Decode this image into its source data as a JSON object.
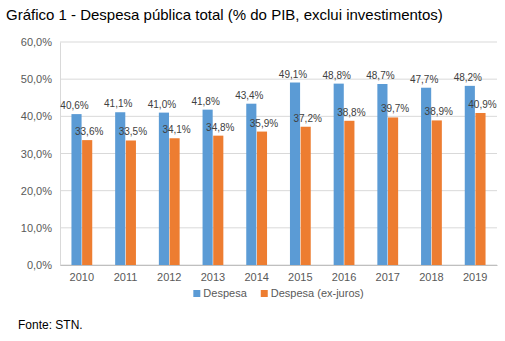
{
  "chart_data": {
    "type": "bar",
    "title": "Gráfico 1 - Despesa pública total (% do PIB, exclui investimentos)",
    "source": "Fonte: STN.",
    "categories": [
      "2010",
      "2011",
      "2012",
      "2013",
      "2014",
      "2015",
      "2016",
      "2017",
      "2018",
      "2019"
    ],
    "series": [
      {
        "name": "Despesa",
        "color": "#5b9bd5",
        "values": [
          40.6,
          41.1,
          41.0,
          41.8,
          43.4,
          49.1,
          48.8,
          48.7,
          47.7,
          48.2
        ],
        "value_labels": [
          "40,6%",
          "41,1%",
          "41,0%",
          "41,8%",
          "43,4%",
          "49,1%",
          "48,8%",
          "48,7%",
          "47,7%",
          "48,2%"
        ]
      },
      {
        "name": "Despesa (ex-juros)",
        "color": "#ed7d31",
        "values": [
          33.6,
          33.5,
          34.1,
          34.8,
          35.9,
          37.2,
          38.8,
          39.7,
          38.9,
          40.9
        ],
        "value_labels": [
          "33,6%",
          "33,5%",
          "34,1%",
          "34,8%",
          "35,9%",
          "37,2%",
          "38,8%",
          "39,7%",
          "38,9%",
          "40,9%"
        ]
      }
    ],
    "ylim": [
      0,
      60
    ],
    "yticks": [
      {
        "value": 0,
        "label": "0,0%"
      },
      {
        "value": 10,
        "label": "10,0%"
      },
      {
        "value": 20,
        "label": "20,0%"
      },
      {
        "value": 30,
        "label": "30,0%"
      },
      {
        "value": 40,
        "label": "40,0%"
      },
      {
        "value": 50,
        "label": "50,0%"
      },
      {
        "value": 60,
        "label": "60,0%"
      }
    ],
    "grid": true,
    "legend": "bottom",
    "data_labels": true
  }
}
